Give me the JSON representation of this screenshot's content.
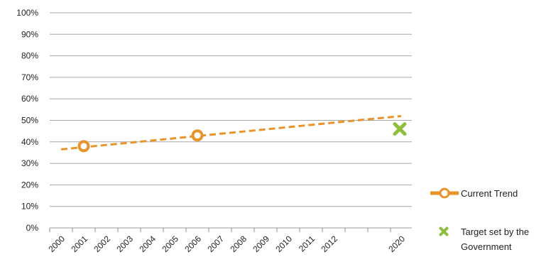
{
  "chart_data": {
    "type": "line",
    "title": "",
    "xlabel": "",
    "ylabel": "",
    "x_tick_labels": [
      "2000",
      "2001",
      "2002",
      "2003",
      "2004",
      "2005",
      "2006",
      "2007",
      "2008",
      "2009",
      "2010",
      "2011",
      "2012",
      "2020"
    ],
    "ylim": [
      0,
      100
    ],
    "y_tick_labels": [
      "0%",
      "10%",
      "20%",
      "30%",
      "40%",
      "50%",
      "60%",
      "70%",
      "80%",
      "90%",
      "100%"
    ],
    "grid": true,
    "legend_position": "right-bottom",
    "series": [
      {
        "name": "Current Trend",
        "kind": "points-with-trendline",
        "color": "#e8942a",
        "points": [
          {
            "x": "2001",
            "y": 38
          },
          {
            "x": "2006",
            "y": 43
          }
        ],
        "trendline": {
          "start": {
            "x": "2000",
            "y": 36.5
          },
          "end": {
            "x": "2020",
            "y": 52
          }
        }
      },
      {
        "name": "Target set by the Government",
        "kind": "marker",
        "color": "#8dbf3c",
        "points": [
          {
            "x": "2020",
            "y": 46
          }
        ]
      }
    ],
    "legend": [
      {
        "label": "Current Trend"
      },
      {
        "label_line1": "Target set by the",
        "label_line2": "Government"
      }
    ]
  }
}
